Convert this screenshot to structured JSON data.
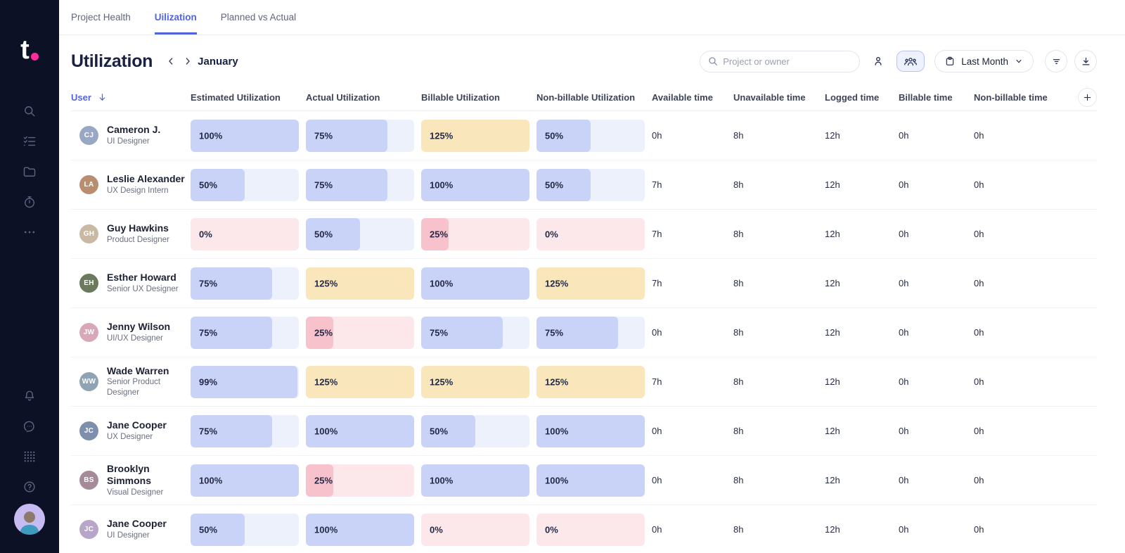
{
  "brand": {
    "logo_text": "t"
  },
  "colors": {
    "accent": "#4f63e4",
    "sidebar_bg": "#0d1126",
    "logo_dot": "#ff2d9c",
    "bar_blue": "#c9d3f8",
    "bar_blue_track": "#edf1fb",
    "bar_yellow": "#f9e7bb",
    "bar_yellow_track": "#fdf6e3",
    "bar_pink": "#f8c2cd",
    "bar_pink_track": "#fce8eb"
  },
  "tabs": [
    {
      "label": "Project Health",
      "active": false
    },
    {
      "label": "Uilization",
      "active": true
    },
    {
      "label": "Planned vs Actual",
      "active": false
    }
  ],
  "page": {
    "title": "Utilization",
    "period": "January"
  },
  "toolbar": {
    "search_placeholder": "Project or owner",
    "date_range_label": "Last Month"
  },
  "table": {
    "columns": [
      "User",
      "Estimated Utilization",
      "Actual Utilization",
      "Billable Utilization",
      "Non-billable Utilization",
      "Available time",
      "Unavailable time",
      "Logged time",
      "Billable time",
      "Non-billable time"
    ],
    "sort": {
      "column": "User",
      "direction": "desc"
    },
    "rows": [
      {
        "name": "Cameron J.",
        "role": "UI Designer",
        "initials": "CJ",
        "avatar_bg": "#9aa7c4",
        "bars": [
          {
            "value": "100%",
            "pct": 100,
            "color": "blue"
          },
          {
            "value": "75%",
            "pct": 75,
            "color": "blue"
          },
          {
            "value": "125%",
            "pct": 125,
            "color": "yellow"
          },
          {
            "value": "50%",
            "pct": 50,
            "color": "blue"
          }
        ],
        "times": [
          "0h",
          "8h",
          "12h",
          "0h",
          "0h"
        ]
      },
      {
        "name": "Leslie Alexander",
        "role": "UX Design Intern",
        "initials": "LA",
        "avatar_bg": "#b98d6f",
        "bars": [
          {
            "value": "50%",
            "pct": 50,
            "color": "blue"
          },
          {
            "value": "75%",
            "pct": 75,
            "color": "blue"
          },
          {
            "value": "100%",
            "pct": 100,
            "color": "blue"
          },
          {
            "value": "50%",
            "pct": 50,
            "color": "blue"
          }
        ],
        "times": [
          "7h",
          "8h",
          "12h",
          "0h",
          "0h"
        ]
      },
      {
        "name": "Guy Hawkins",
        "role": "Product Designer",
        "initials": "GH",
        "avatar_bg": "#c9b9a2",
        "bars": [
          {
            "value": "0%",
            "pct": 0,
            "color": "pink"
          },
          {
            "value": "50%",
            "pct": 50,
            "color": "blue"
          },
          {
            "value": "25%",
            "pct": 25,
            "color": "pink"
          },
          {
            "value": "0%",
            "pct": 0,
            "color": "pink"
          }
        ],
        "times": [
          "7h",
          "8h",
          "12h",
          "0h",
          "0h"
        ]
      },
      {
        "name": "Esther Howard",
        "role": "Senior UX Designer",
        "initials": "EH",
        "avatar_bg": "#6b7a5c",
        "bars": [
          {
            "value": "75%",
            "pct": 75,
            "color": "blue"
          },
          {
            "value": "125%",
            "pct": 125,
            "color": "yellow"
          },
          {
            "value": "100%",
            "pct": 100,
            "color": "blue"
          },
          {
            "value": "125%",
            "pct": 125,
            "color": "yellow"
          }
        ],
        "times": [
          "7h",
          "8h",
          "12h",
          "0h",
          "0h"
        ]
      },
      {
        "name": "Jenny Wilson",
        "role": "UI/UX Designer",
        "initials": "JW",
        "avatar_bg": "#d8a8b8",
        "bars": [
          {
            "value": "75%",
            "pct": 75,
            "color": "blue"
          },
          {
            "value": "25%",
            "pct": 25,
            "color": "pink"
          },
          {
            "value": "75%",
            "pct": 75,
            "color": "blue"
          },
          {
            "value": "75%",
            "pct": 75,
            "color": "blue"
          }
        ],
        "times": [
          "0h",
          "8h",
          "12h",
          "0h",
          "0h"
        ]
      },
      {
        "name": "Wade Warren",
        "role": "Senior Product Designer",
        "initials": "WW",
        "avatar_bg": "#8fa3b5",
        "bars": [
          {
            "value": "99%",
            "pct": 99,
            "color": "blue"
          },
          {
            "value": "125%",
            "pct": 125,
            "color": "yellow"
          },
          {
            "value": "125%",
            "pct": 125,
            "color": "yellow"
          },
          {
            "value": "125%",
            "pct": 125,
            "color": "yellow"
          }
        ],
        "times": [
          "7h",
          "8h",
          "12h",
          "0h",
          "0h"
        ]
      },
      {
        "name": "Jane Cooper",
        "role": "UX Designer",
        "initials": "JC",
        "avatar_bg": "#7e8fae",
        "bars": [
          {
            "value": "75%",
            "pct": 75,
            "color": "blue"
          },
          {
            "value": "100%",
            "pct": 100,
            "color": "blue"
          },
          {
            "value": "50%",
            "pct": 50,
            "color": "blue"
          },
          {
            "value": "100%",
            "pct": 100,
            "color": "blue"
          }
        ],
        "times": [
          "0h",
          "8h",
          "12h",
          "0h",
          "0h"
        ]
      },
      {
        "name": "Brooklyn Simmons",
        "role": "Visual Designer",
        "initials": "BS",
        "avatar_bg": "#a58b9a",
        "bars": [
          {
            "value": "100%",
            "pct": 100,
            "color": "blue"
          },
          {
            "value": "25%",
            "pct": 25,
            "color": "pink"
          },
          {
            "value": "100%",
            "pct": 100,
            "color": "blue"
          },
          {
            "value": "100%",
            "pct": 100,
            "color": "blue"
          }
        ],
        "times": [
          "0h",
          "8h",
          "12h",
          "0h",
          "0h"
        ]
      },
      {
        "name": "Jane Cooper",
        "role": "UI Designer",
        "initials": "JC",
        "avatar_bg": "#b7a6c9",
        "bars": [
          {
            "value": "50%",
            "pct": 50,
            "color": "blue"
          },
          {
            "value": "100%",
            "pct": 100,
            "color": "blue"
          },
          {
            "value": "0%",
            "pct": 0,
            "color": "pink"
          },
          {
            "value": "0%",
            "pct": 0,
            "color": "pink"
          }
        ],
        "times": [
          "0h",
          "8h",
          "12h",
          "0h",
          "0h"
        ]
      }
    ]
  }
}
